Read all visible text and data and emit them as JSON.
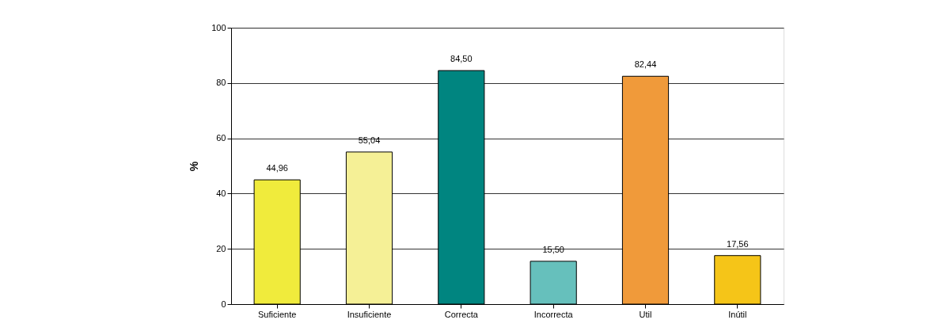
{
  "chart_data": {
    "type": "bar",
    "ylabel": "%",
    "categories": [
      "Suficiente",
      "Insuficiente",
      "Correcta",
      "Incorrecta",
      "Util",
      "Inútil"
    ],
    "values": [
      44.96,
      55.04,
      84.5,
      15.5,
      82.44,
      17.56
    ],
    "colors": [
      "#f0eb3c",
      "#f5f096",
      "#008580",
      "#66c0bc",
      "#f09a3a",
      "#f5c518"
    ],
    "value_labels": [
      "44,96",
      "55,04",
      "84,50",
      "15,50",
      "82,44",
      "17,56"
    ],
    "ylim": [
      0,
      100
    ],
    "yticks": [
      0,
      20,
      40,
      60,
      80,
      100
    ],
    "grid": "y"
  }
}
